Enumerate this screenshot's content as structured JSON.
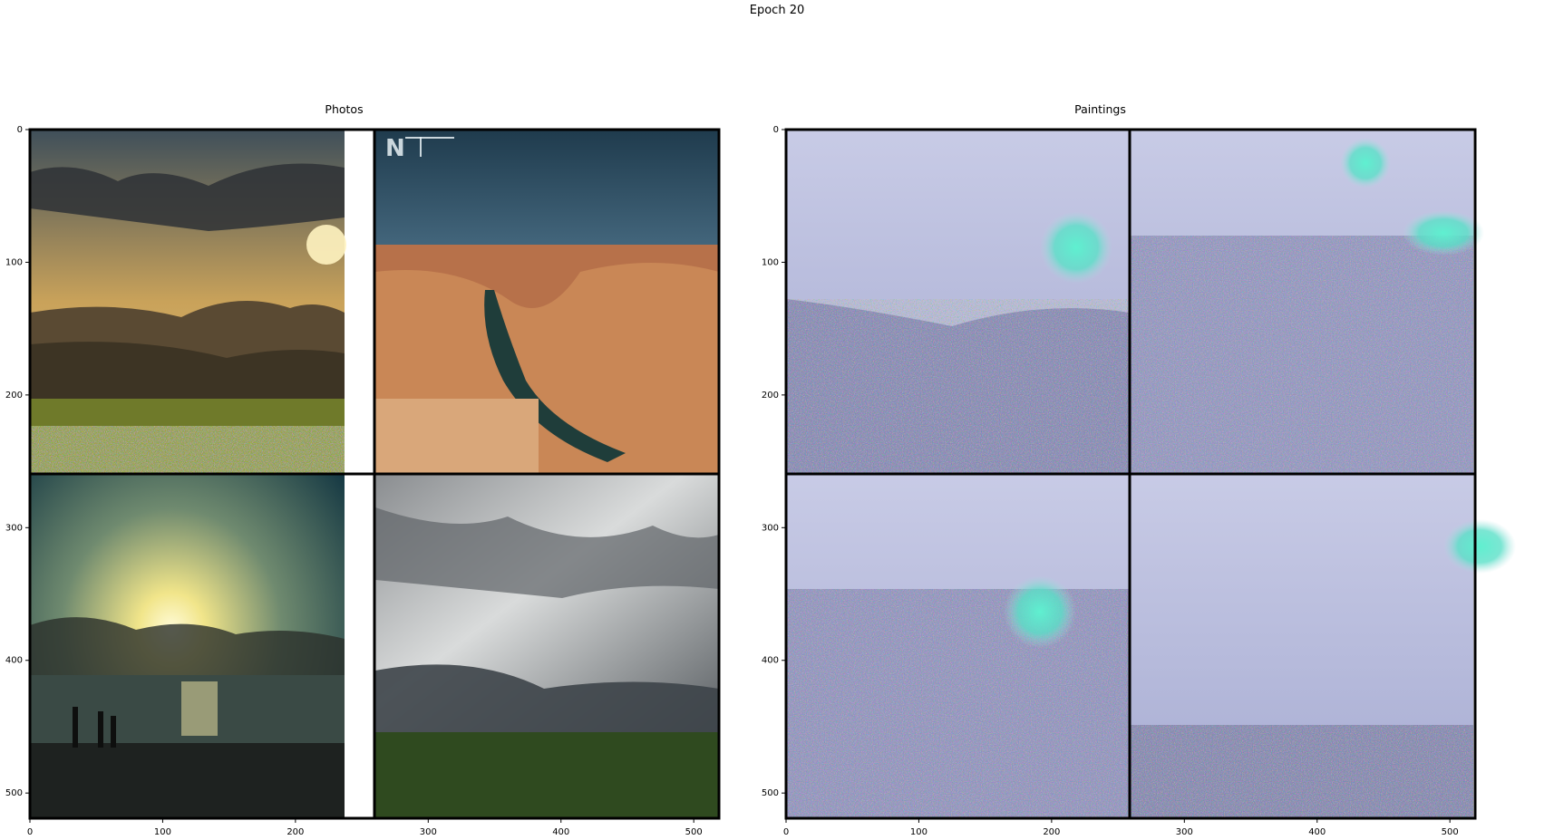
{
  "figure": {
    "suptitle": "Epoch 20"
  },
  "panels": [
    {
      "id": "photos",
      "title": "Photos",
      "xticks": [
        "0",
        "100",
        "200",
        "300",
        "400",
        "500"
      ],
      "yticks": [
        "0",
        "100",
        "200",
        "300",
        "400",
        "500"
      ],
      "tiles": [
        "sunset-meadow-photo",
        "canyon-river-photo",
        "sunset-beach-photo",
        "storm-field-photo"
      ]
    },
    {
      "id": "paintings",
      "title": "Paintings",
      "xticks": [
        "0",
        "100",
        "200",
        "300",
        "400",
        "500"
      ],
      "yticks": [
        "0",
        "100",
        "200",
        "300",
        "400",
        "500"
      ],
      "tiles": [
        "meadow-painting",
        "canyon-painting",
        "beach-painting",
        "storm-painting"
      ]
    }
  ]
}
